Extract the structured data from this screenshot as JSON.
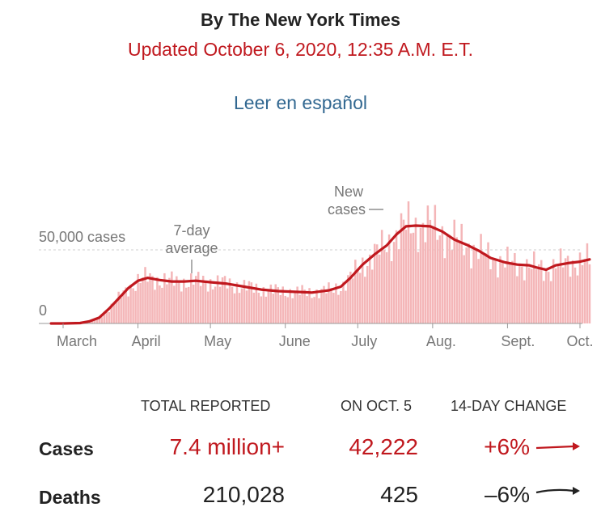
{
  "header": {
    "byline": "By The New York Times",
    "updated": "Updated October 6, 2020, 12:35 A.M. E.T.",
    "spanish_link": "Leer en español"
  },
  "chart_data": {
    "type": "bar",
    "title": "",
    "xlabel": "",
    "ylabel": "",
    "ylim": [
      0,
      75000
    ],
    "y_ticks": [
      {
        "value": 0,
        "label": "0"
      },
      {
        "value": 50000,
        "label": "50,000 cases"
      }
    ],
    "x_ticks": [
      "March",
      "April",
      "May",
      "June",
      "July",
      "Aug.",
      "Sept.",
      "Oct."
    ],
    "annotations": {
      "average_label_line1": "7-day",
      "average_label_line2": "average",
      "new_cases_line1": "New",
      "new_cases_line2": "cases"
    },
    "series": [
      {
        "name": "New cases",
        "kind": "bars",
        "color": "#f4b6b8"
      },
      {
        "name": "7-day average",
        "kind": "line",
        "color": "#c0181e"
      }
    ],
    "seven_day_average": {
      "dates": [
        "Feb 25",
        "Mar 1",
        "Mar 8",
        "Mar 12",
        "Mar 16",
        "Mar 20",
        "Mar 24",
        "Mar 28",
        "Apr 1",
        "Apr 5",
        "Apr 10",
        "Apr 15",
        "Apr 20",
        "Apr 25",
        "May 1",
        "May 8",
        "May 15",
        "May 22",
        "May 29",
        "Jun 5",
        "Jun 12",
        "Jun 19",
        "Jun 24",
        "Jun 28",
        "Jul 3",
        "Jul 8",
        "Jul 13",
        "Jul 17",
        "Jul 21",
        "Jul 25",
        "Jul 31",
        "Aug 5",
        "Aug 10",
        "Aug 15",
        "Aug 20",
        "Aug 25",
        "Aug 31",
        "Sep 5",
        "Sep 10",
        "Sep 13",
        "Sep 17",
        "Sep 21",
        "Sep 26",
        "Oct 1",
        "Oct 5"
      ],
      "values": [
        0,
        20,
        300,
        1500,
        4000,
        10000,
        17000,
        24000,
        29000,
        31000,
        29500,
        28500,
        28500,
        29000,
        28000,
        27000,
        25000,
        23000,
        22000,
        21500,
        21000,
        22500,
        25000,
        31000,
        40000,
        47000,
        53000,
        60500,
        66000,
        66500,
        66000,
        62500,
        57000,
        53500,
        49500,
        44500,
        41500,
        40000,
        39500,
        38000,
        36500,
        39500,
        41000,
        42000,
        43500
      ]
    }
  },
  "stats": {
    "headers": {
      "total": "TOTAL REPORTED",
      "on_date": "ON OCT. 5",
      "change": "14-DAY CHANGE"
    },
    "cases": {
      "label": "Cases",
      "total": "7.4 million+",
      "on_date": "42,222",
      "change": "+6%"
    },
    "deaths": {
      "label": "Deaths",
      "total": "210,028",
      "on_date": "425",
      "change": "–6%"
    },
    "colors": {
      "cases": "#c0181e",
      "deaths": "#222222"
    }
  }
}
